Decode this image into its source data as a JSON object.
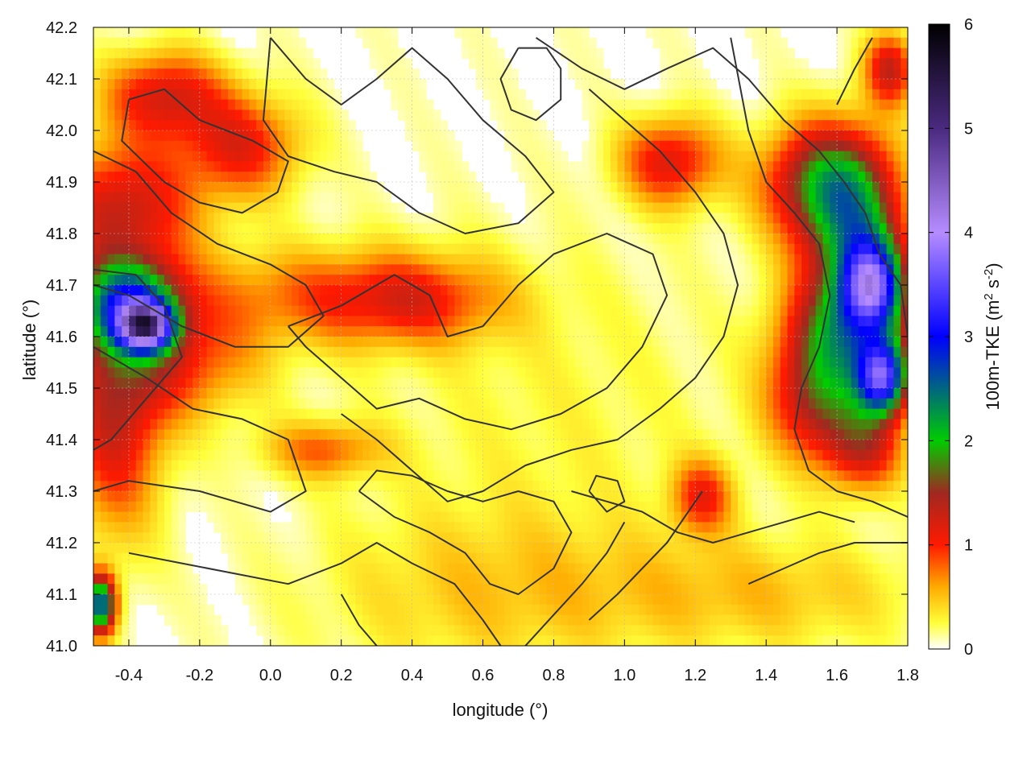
{
  "chart_data": {
    "type": "heatmap",
    "xlabel": "longitude (°)",
    "ylabel": "latitude (°)",
    "colorbar_label": "100m-TKE (m² s⁻²)",
    "colorbar_label_parts": {
      "base": "100m-TKE (m",
      "sup1": "2",
      "mid": " s",
      "sup2": "-2",
      "end": ")"
    },
    "xlim": [
      -0.5,
      1.8
    ],
    "ylim": [
      41.0,
      42.2
    ],
    "zlim": [
      0,
      6
    ],
    "x_ticks": [
      -0.4,
      -0.2,
      0.0,
      0.2,
      0.4,
      0.6,
      0.8,
      1.0,
      1.2,
      1.4,
      1.6,
      1.8
    ],
    "x_tick_labels": [
      "-0.4",
      "-0.2",
      "0.0",
      "0.2",
      "0.4",
      "0.6",
      "0.8",
      "1.0",
      "1.2",
      "1.4",
      "1.6",
      "1.8"
    ],
    "y_ticks": [
      41.0,
      41.1,
      41.2,
      41.3,
      41.4,
      41.5,
      41.6,
      41.7,
      41.8,
      41.9,
      42.0,
      42.1,
      42.2
    ],
    "y_tick_labels": [
      "41.0",
      "41.1",
      "41.2",
      "41.3",
      "41.4",
      "41.5",
      "41.6",
      "41.7",
      "41.8",
      "41.9",
      "42.0",
      "42.1",
      "42.2"
    ],
    "cb_ticks": [
      0,
      1,
      2,
      3,
      4,
      5,
      6
    ],
    "cb_tick_labels": [
      "0",
      "1",
      "2",
      "3",
      "4",
      "5",
      "6"
    ],
    "grid": true,
    "colormap": [
      {
        "v": 0.0,
        "color": "#ffffff"
      },
      {
        "v": 0.25,
        "color": "#ffff3a"
      },
      {
        "v": 0.6,
        "color": "#ffaa00"
      },
      {
        "v": 1.0,
        "color": "#ff1a00"
      },
      {
        "v": 1.5,
        "color": "#a02820"
      },
      {
        "v": 2.0,
        "color": "#00cc00"
      },
      {
        "v": 3.0,
        "color": "#0000ff"
      },
      {
        "v": 4.0,
        "color": "#b58cff"
      },
      {
        "v": 5.0,
        "color": "#4a2a80"
      },
      {
        "v": 6.0,
        "color": "#000000"
      }
    ],
    "hotspots": [
      {
        "lon": -0.3,
        "lat": 42.07,
        "sx": 0.12,
        "sy": 0.06,
        "amp": 1.1
      },
      {
        "lon": -0.08,
        "lat": 41.97,
        "sx": 0.12,
        "sy": 0.07,
        "amp": 1.0
      },
      {
        "lon": -0.42,
        "lat": 41.85,
        "sx": 0.15,
        "sy": 0.09,
        "amp": 1.2
      },
      {
        "lon": -0.4,
        "lat": 41.66,
        "sx": 0.1,
        "sy": 0.06,
        "amp": 2.2
      },
      {
        "lon": -0.35,
        "lat": 41.62,
        "sx": 0.05,
        "sy": 0.03,
        "amp": 3.0
      },
      {
        "lon": -0.44,
        "lat": 41.45,
        "sx": 0.1,
        "sy": 0.16,
        "amp": 1.2
      },
      {
        "lon": -0.25,
        "lat": 41.55,
        "sx": 0.15,
        "sy": 0.08,
        "amp": 0.8
      },
      {
        "lon": 0.1,
        "lat": 41.68,
        "sx": 0.3,
        "sy": 0.07,
        "amp": 0.6
      },
      {
        "lon": 0.4,
        "lat": 41.67,
        "sx": 0.18,
        "sy": 0.06,
        "amp": 0.7
      },
      {
        "lon": 0.15,
        "lat": 41.38,
        "sx": 0.12,
        "sy": 0.04,
        "amp": 0.7
      },
      {
        "lon": 1.13,
        "lat": 41.94,
        "sx": 0.1,
        "sy": 0.06,
        "amp": 1.1
      },
      {
        "lon": 1.55,
        "lat": 41.9,
        "sx": 0.12,
        "sy": 0.08,
        "amp": 1.4
      },
      {
        "lon": 1.65,
        "lat": 41.8,
        "sx": 0.1,
        "sy": 0.12,
        "amp": 1.7
      },
      {
        "lon": 1.7,
        "lat": 41.7,
        "sx": 0.06,
        "sy": 0.06,
        "amp": 2.5
      },
      {
        "lon": 1.62,
        "lat": 41.6,
        "sx": 0.12,
        "sy": 0.08,
        "amp": 1.5
      },
      {
        "lon": 1.73,
        "lat": 41.52,
        "sx": 0.05,
        "sy": 0.05,
        "amp": 2.8
      },
      {
        "lon": 1.55,
        "lat": 41.47,
        "sx": 0.1,
        "sy": 0.08,
        "amp": 1.2
      },
      {
        "lon": 1.68,
        "lat": 41.38,
        "sx": 0.08,
        "sy": 0.06,
        "amp": 1.0
      },
      {
        "lon": 1.22,
        "lat": 41.29,
        "sx": 0.06,
        "sy": 0.05,
        "amp": 0.9
      },
      {
        "lon": 1.75,
        "lat": 42.12,
        "sx": 0.05,
        "sy": 0.05,
        "amp": 1.2
      },
      {
        "lon": -0.48,
        "lat": 41.08,
        "sx": 0.03,
        "sy": 0.04,
        "amp": 2.5
      },
      {
        "lon": 0.6,
        "lat": 41.1,
        "sx": 0.35,
        "sy": 0.12,
        "amp": 0.35
      },
      {
        "lon": 1.4,
        "lat": 41.1,
        "sx": 0.35,
        "sy": 0.08,
        "amp": 0.4
      },
      {
        "lon": 0.8,
        "lat": 41.45,
        "sx": 0.4,
        "sy": 0.25,
        "amp": 0.2
      }
    ],
    "contours": [
      [
        [
          -0.4,
          42.06
        ],
        [
          -0.3,
          42.08
        ],
        [
          -0.2,
          42.02
        ],
        [
          -0.05,
          41.98
        ],
        [
          0.05,
          41.94
        ],
        [
          0.02,
          41.88
        ],
        [
          -0.08,
          41.84
        ],
        [
          -0.2,
          41.86
        ],
        [
          -0.3,
          41.9
        ],
        [
          -0.42,
          41.98
        ],
        [
          -0.4,
          42.06
        ]
      ],
      [
        [
          -0.5,
          41.96
        ],
        [
          -0.38,
          41.92
        ],
        [
          -0.28,
          41.84
        ],
        [
          -0.15,
          41.78
        ],
        [
          0.0,
          41.74
        ],
        [
          0.1,
          41.7
        ],
        [
          0.15,
          41.64
        ],
        [
          0.05,
          41.58
        ],
        [
          -0.1,
          41.58
        ],
        [
          -0.25,
          41.62
        ],
        [
          -0.4,
          41.68
        ],
        [
          -0.5,
          41.7
        ]
      ],
      [
        [
          -0.5,
          41.73
        ],
        [
          -0.38,
          41.72
        ],
        [
          -0.3,
          41.66
        ],
        [
          -0.25,
          41.56
        ],
        [
          -0.35,
          41.48
        ],
        [
          -0.45,
          41.4
        ],
        [
          -0.5,
          41.38
        ]
      ],
      [
        [
          -0.5,
          41.58
        ],
        [
          -0.35,
          41.52
        ],
        [
          -0.22,
          41.46
        ],
        [
          -0.08,
          41.44
        ],
        [
          0.05,
          41.4
        ],
        [
          0.1,
          41.3
        ],
        [
          0.0,
          41.26
        ],
        [
          -0.2,
          41.3
        ],
        [
          -0.4,
          41.32
        ],
        [
          -0.5,
          41.3
        ]
      ],
      [
        [
          -0.4,
          41.18
        ],
        [
          -0.25,
          41.16
        ],
        [
          -0.1,
          41.14
        ],
        [
          0.05,
          41.12
        ],
        [
          0.2,
          41.16
        ],
        [
          0.3,
          41.2
        ],
        [
          0.4,
          41.16
        ],
        [
          0.52,
          41.12
        ],
        [
          0.6,
          41.05
        ],
        [
          0.65,
          41.0
        ]
      ],
      [
        [
          0.0,
          42.18
        ],
        [
          0.1,
          42.1
        ],
        [
          0.2,
          42.05
        ],
        [
          0.3,
          42.1
        ],
        [
          0.4,
          42.16
        ],
        [
          0.5,
          42.1
        ],
        [
          0.6,
          42.02
        ],
        [
          0.72,
          41.95
        ],
        [
          0.8,
          41.88
        ],
        [
          0.7,
          41.82
        ],
        [
          0.55,
          41.8
        ],
        [
          0.42,
          41.84
        ],
        [
          0.3,
          41.9
        ],
        [
          0.18,
          41.92
        ],
        [
          0.05,
          41.95
        ],
        [
          -0.02,
          42.02
        ],
        [
          0.0,
          42.18
        ]
      ],
      [
        [
          0.05,
          41.62
        ],
        [
          0.2,
          41.66
        ],
        [
          0.35,
          41.72
        ],
        [
          0.45,
          41.68
        ],
        [
          0.5,
          41.6
        ],
        [
          0.6,
          41.62
        ],
        [
          0.7,
          41.7
        ],
        [
          0.8,
          41.76
        ],
        [
          0.95,
          41.8
        ],
        [
          1.08,
          41.76
        ],
        [
          1.12,
          41.68
        ],
        [
          1.05,
          41.58
        ],
        [
          0.95,
          41.5
        ],
        [
          0.82,
          41.45
        ],
        [
          0.68,
          41.42
        ],
        [
          0.55,
          41.44
        ],
        [
          0.42,
          41.48
        ],
        [
          0.3,
          41.46
        ],
        [
          0.2,
          41.52
        ],
        [
          0.1,
          41.58
        ],
        [
          0.05,
          41.62
        ]
      ],
      [
        [
          0.2,
          41.45
        ],
        [
          0.3,
          41.4
        ],
        [
          0.4,
          41.34
        ],
        [
          0.5,
          41.28
        ],
        [
          0.6,
          41.3
        ],
        [
          0.72,
          41.35
        ],
        [
          0.85,
          41.38
        ],
        [
          0.98,
          41.4
        ],
        [
          1.1,
          41.46
        ],
        [
          1.2,
          41.52
        ],
        [
          1.28,
          41.6
        ],
        [
          1.32,
          41.7
        ],
        [
          1.28,
          41.8
        ],
        [
          1.2,
          41.88
        ],
        [
          1.1,
          41.96
        ],
        [
          1.0,
          42.02
        ],
        [
          0.9,
          42.08
        ]
      ],
      [
        [
          0.75,
          42.18
        ],
        [
          0.88,
          42.12
        ],
        [
          1.0,
          42.08
        ],
        [
          1.12,
          42.12
        ],
        [
          1.25,
          42.16
        ],
        [
          1.35,
          42.1
        ],
        [
          1.45,
          42.02
        ],
        [
          1.55,
          41.96
        ],
        [
          1.62,
          41.9
        ],
        [
          1.68,
          41.84
        ],
        [
          1.72,
          41.76
        ],
        [
          1.78,
          41.7
        ],
        [
          1.8,
          41.6
        ]
      ],
      [
        [
          1.3,
          42.18
        ],
        [
          1.35,
          42.0
        ],
        [
          1.4,
          41.9
        ],
        [
          1.48,
          41.84
        ],
        [
          1.55,
          41.78
        ],
        [
          1.58,
          41.68
        ],
        [
          1.55,
          41.58
        ],
        [
          1.5,
          41.5
        ],
        [
          1.48,
          41.42
        ],
        [
          1.52,
          41.34
        ],
        [
          1.6,
          41.3
        ],
        [
          1.7,
          41.28
        ],
        [
          1.8,
          41.25
        ]
      ],
      [
        [
          0.85,
          41.3
        ],
        [
          0.95,
          41.28
        ],
        [
          1.05,
          41.26
        ],
        [
          1.15,
          41.22
        ],
        [
          1.25,
          41.2
        ],
        [
          1.35,
          41.22
        ],
        [
          1.45,
          41.24
        ],
        [
          1.55,
          41.26
        ],
        [
          1.65,
          41.24
        ]
      ],
      [
        [
          0.9,
          41.05
        ],
        [
          0.98,
          41.1
        ],
        [
          1.05,
          41.15
        ],
        [
          1.12,
          41.2
        ],
        [
          1.18,
          41.26
        ],
        [
          1.22,
          41.3
        ]
      ],
      [
        [
          0.72,
          41.0
        ],
        [
          0.8,
          41.06
        ],
        [
          0.88,
          41.12
        ],
        [
          0.95,
          41.18
        ],
        [
          1.0,
          41.24
        ]
      ],
      [
        [
          0.25,
          41.3
        ],
        [
          0.35,
          41.25
        ],
        [
          0.45,
          41.22
        ],
        [
          0.55,
          41.18
        ],
        [
          0.62,
          41.12
        ],
        [
          0.7,
          41.1
        ],
        [
          0.8,
          41.15
        ],
        [
          0.85,
          41.22
        ],
        [
          0.8,
          41.28
        ],
        [
          0.7,
          41.3
        ],
        [
          0.6,
          41.28
        ],
        [
          0.5,
          41.3
        ],
        [
          0.4,
          41.33
        ],
        [
          0.3,
          41.34
        ],
        [
          0.25,
          41.3
        ]
      ],
      [
        [
          1.35,
          41.12
        ],
        [
          1.45,
          41.15
        ],
        [
          1.55,
          41.18
        ],
        [
          1.65,
          41.2
        ],
        [
          1.75,
          41.2
        ],
        [
          1.8,
          41.2
        ]
      ],
      [
        [
          0.2,
          41.1
        ],
        [
          0.25,
          41.04
        ],
        [
          0.3,
          41.0
        ]
      ],
      [
        [
          1.6,
          42.05
        ],
        [
          1.65,
          42.12
        ],
        [
          1.7,
          42.18
        ]
      ],
      [
        [
          0.7,
          42.16
        ],
        [
          0.65,
          42.1
        ],
        [
          0.68,
          42.04
        ],
        [
          0.75,
          42.02
        ],
        [
          0.82,
          42.06
        ],
        [
          0.82,
          42.12
        ],
        [
          0.78,
          42.16
        ],
        [
          0.7,
          42.16
        ]
      ],
      [
        [
          0.9,
          41.3
        ],
        [
          0.95,
          41.26
        ],
        [
          1.0,
          41.28
        ],
        [
          0.98,
          41.32
        ],
        [
          0.92,
          41.33
        ],
        [
          0.9,
          41.3
        ]
      ]
    ]
  }
}
